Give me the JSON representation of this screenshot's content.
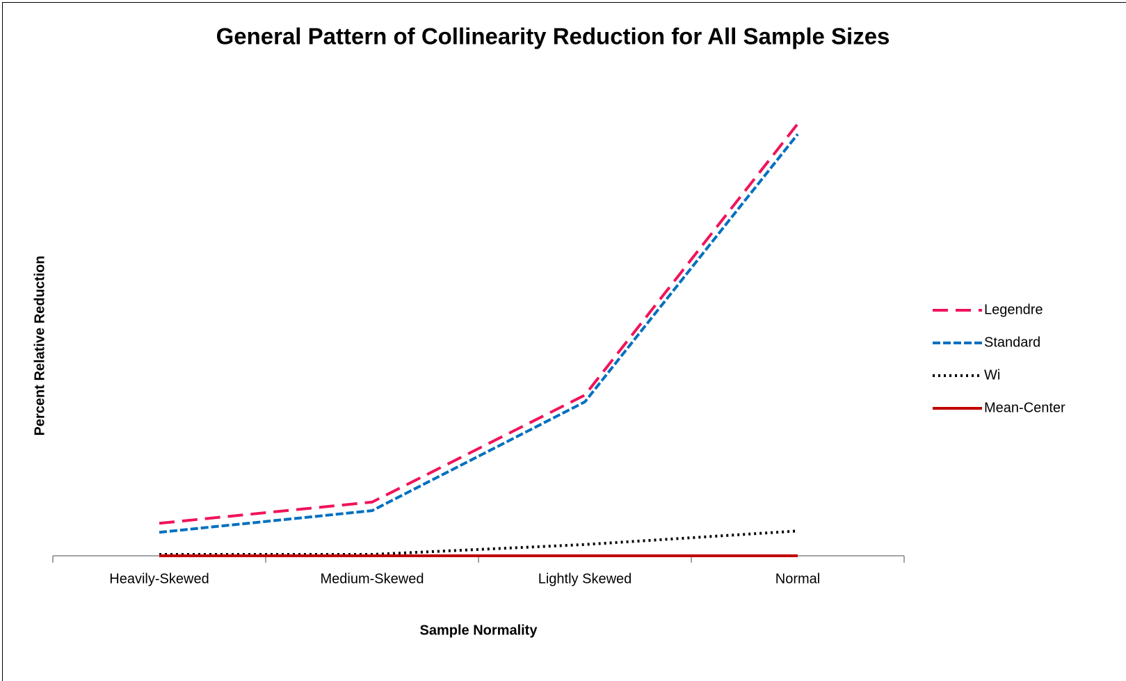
{
  "chart_data": {
    "type": "line",
    "title": "General Pattern of Collinearity Reduction for All Sample Sizes",
    "x_label": "Sample Normality",
    "y_label": "Percent Relative Reduction",
    "categories": [
      "Heavily-Skewed",
      "Medium-Skewed",
      "Lightly Skewed",
      "Normal"
    ],
    "ylim": [
      0,
      100
    ],
    "legend": "right",
    "series": [
      {
        "name": "Legendre",
        "color": "#f0145a",
        "dash": "22,11",
        "values": [
          7.2,
          11.9,
          35.6,
          95.7
        ]
      },
      {
        "name": "Standard",
        "color": "#0070c0",
        "dash": "11,4",
        "values": [
          5.2,
          10.0,
          34.1,
          93.4
        ]
      },
      {
        "name": "Wi",
        "color": "#000000",
        "dash": "3,5",
        "values": [
          0.3,
          0.3,
          2.5,
          5.5
        ]
      },
      {
        "name": "Mean-Center",
        "color": "#c00000",
        "dash": "none",
        "values": [
          0,
          0,
          0,
          0
        ]
      }
    ]
  }
}
